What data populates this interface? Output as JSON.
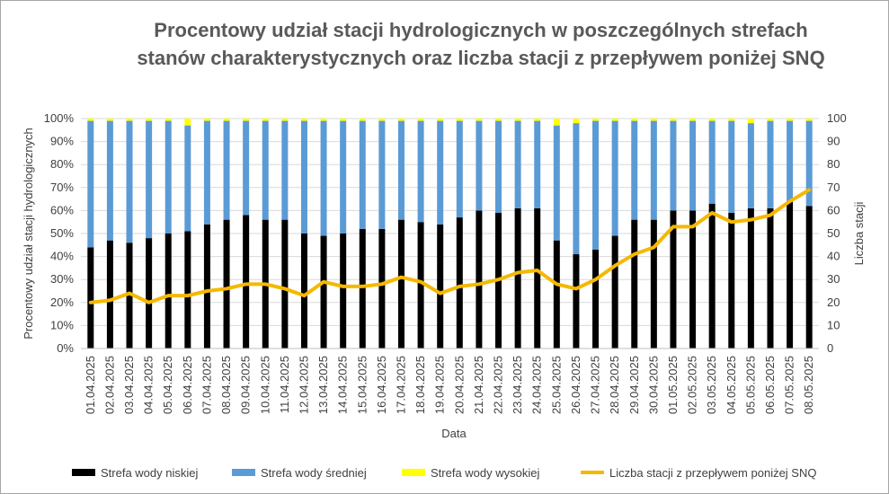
{
  "colors": {
    "low": "#000000",
    "mid": "#5b9bd5",
    "high": "#ffff00",
    "line": "#f5b800"
  },
  "chart_data": {
    "type": "bar",
    "stacked": true,
    "title": "Procentowy udział stacji hydrologicznych w poszczególnych strefach stanów charakterystycznych oraz liczba stacji z przepływem poniżej SNQ",
    "xlabel": "Data",
    "ylabel": "Procentowy udział stacji hydrologicznych",
    "y2label": "Liczba stacji",
    "ylim": [
      0,
      100
    ],
    "y2lim": [
      0,
      100
    ],
    "yticks": [
      "0%",
      "10%",
      "20%",
      "30%",
      "40%",
      "50%",
      "60%",
      "70%",
      "80%",
      "90%",
      "100%"
    ],
    "y2ticks": [
      "0",
      "10",
      "20",
      "30",
      "40",
      "50",
      "60",
      "70",
      "80",
      "90",
      "100"
    ],
    "grid": true,
    "legend_position": "bottom",
    "categories": [
      "01.04.2025",
      "02.04.2025",
      "03.04.2025",
      "04.04.2025",
      "05.04.2025",
      "06.04.2025",
      "07.04.2025",
      "08.04.2025",
      "09.04.2025",
      "10.04.2025",
      "11.04.2025",
      "12.04.2025",
      "13.04.2025",
      "14.04.2025",
      "15.04.2025",
      "16.04.2025",
      "17.04.2025",
      "18.04.2025",
      "19.04.2025",
      "20.04.2025",
      "21.04.2025",
      "22.04.2025",
      "23.04.2025",
      "24.04.2025",
      "25.04.2025",
      "26.04.2025",
      "27.04.2025",
      "28.04.2025",
      "29.04.2025",
      "30.04.2025",
      "01.05.2025",
      "02.05.2025",
      "03.05.2025",
      "04.05.2025",
      "05.05.2025",
      "06.05.2025",
      "07.05.2025",
      "08.05.2025"
    ],
    "series": [
      {
        "name": "Strefa wody niskiej",
        "kind": "bar",
        "values": [
          44,
          47,
          46,
          48,
          50,
          51,
          54,
          56,
          58,
          56,
          56,
          50,
          49,
          50,
          52,
          52,
          56,
          55,
          54,
          57,
          60,
          59,
          61,
          61,
          47,
          41,
          43,
          49,
          56,
          56,
          60,
          60,
          63,
          59,
          61,
          61,
          64,
          62
        ]
      },
      {
        "name": "Strefa wody średniej",
        "kind": "bar",
        "values": [
          55,
          52,
          53,
          51,
          49,
          46,
          45,
          43,
          41,
          43,
          43,
          49,
          50,
          49,
          47,
          47,
          43,
          44,
          45,
          42,
          39,
          40,
          38,
          38,
          50,
          57,
          56,
          50,
          43,
          43,
          39,
          39,
          36,
          40,
          37,
          38,
          35,
          37
        ]
      },
      {
        "name": "Strefa wody wysokiej",
        "kind": "bar",
        "values": [
          1,
          1,
          1,
          1,
          1,
          3,
          1,
          1,
          1,
          1,
          1,
          1,
          1,
          1,
          1,
          1,
          1,
          1,
          1,
          1,
          1,
          1,
          1,
          1,
          3,
          2,
          1,
          1,
          1,
          1,
          1,
          1,
          1,
          1,
          2,
          1,
          1,
          1
        ]
      },
      {
        "name": "Liczba stacji z przepływem poniżej SNQ",
        "kind": "line",
        "axis": "right",
        "values": [
          20,
          21,
          24,
          20,
          23,
          23,
          25,
          26,
          28,
          28,
          26,
          23,
          29,
          27,
          27,
          28,
          31,
          29,
          24,
          27,
          28,
          30,
          33,
          34,
          28,
          26,
          30,
          36,
          41,
          44,
          53,
          53,
          59,
          55,
          56,
          58,
          64,
          69
        ]
      }
    ]
  }
}
